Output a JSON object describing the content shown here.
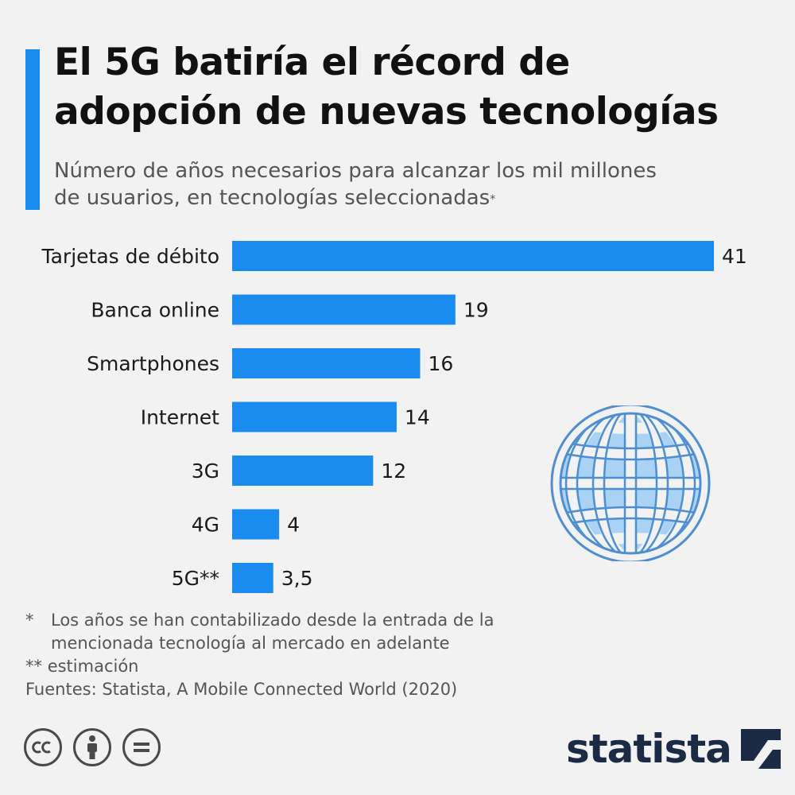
{
  "title_lines": [
    "El 5G batiría el récord de",
    "adopción de nuevas tecnologías"
  ],
  "subtitle_lines": [
    "Número de años necesarios para alcanzar los mil millones",
    "de usuarios, en tecnologías seleccionadas"
  ],
  "subtitle_mark": "*",
  "chart_data": {
    "type": "bar",
    "orientation": "horizontal",
    "categories": [
      "Tarjetas de débito",
      "Banca online",
      "Smartphones",
      "Internet",
      "3G",
      "4G",
      "5G**"
    ],
    "values": [
      41,
      19,
      16,
      14,
      12,
      4,
      3.5
    ],
    "value_labels": [
      "41",
      "19",
      "16",
      "14",
      "12",
      "4",
      "3,5"
    ],
    "bar_color": "#1a8cf0",
    "xlim": [
      0,
      41
    ],
    "grid": false,
    "legend": "none"
  },
  "notes": [
    {
      "mark": "*",
      "lines": [
        "Los años se han contabilizado desde la entrada de la",
        "mencionada tecnología al mercado en adelante"
      ]
    },
    {
      "mark": "**",
      "lines": [
        "estimación"
      ]
    }
  ],
  "source": "Fuentes: Statista, A Mobile Connected World (2020)",
  "license_icons": [
    "cc-icon",
    "attribution-icon",
    "no-derivatives-icon"
  ],
  "brand": {
    "name": "statista",
    "color": "#1b2a45"
  },
  "globe_icon": {
    "name": "globe-icon",
    "color": "#a9d2f4",
    "stroke": "#4d8fd1"
  }
}
